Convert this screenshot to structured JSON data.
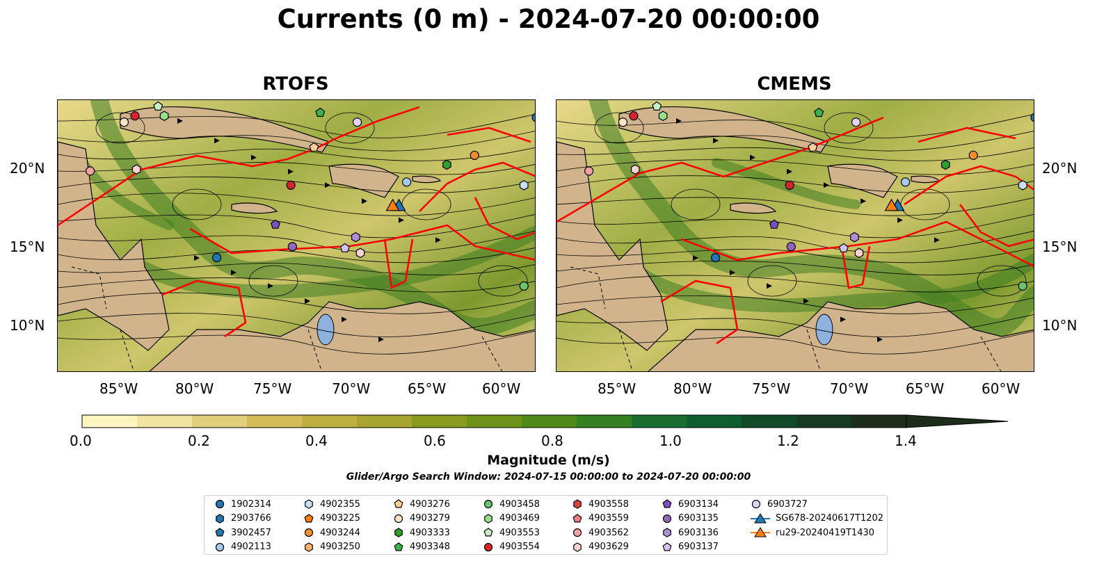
{
  "title": "Currents (0 m) - 2024-07-20 00:00:00",
  "panels": [
    {
      "title": "RTOFS"
    },
    {
      "title": "CMEMS"
    }
  ],
  "lon_ticks": [
    "85°W",
    "80°W",
    "75°W",
    "70°W",
    "65°W",
    "60°W"
  ],
  "lat_ticks": [
    "20°N",
    "15°N",
    "10°N"
  ],
  "colorbar": {
    "label": "Magnitude (m/s)",
    "range": [
      0.0,
      1.5
    ],
    "extend": "max",
    "tick_labels": [
      "0.0",
      "0.2",
      "0.4",
      "0.6",
      "0.8",
      "1.0",
      "1.2",
      "1.4"
    ],
    "colors": [
      "#fdf5c0",
      "#f1e4a0",
      "#e2cf7c",
      "#d2bd5a",
      "#bfae40",
      "#a8a530",
      "#8a9c20",
      "#6f9318",
      "#4f8a18",
      "#348023",
      "#1a6e30",
      "#0f5e30",
      "#104a28",
      "#173b22",
      "#1c2e1a"
    ]
  },
  "search_window": "Glider/Argo Search Window: 2024-07-15 00:00:00 to 2024-07-20 00:00:00",
  "legend": {
    "items": [
      {
        "label": "1902314",
        "marker": "circle",
        "color": "#1f77b4"
      },
      {
        "label": "2903766",
        "marker": "hexagon",
        "color": "#1f77b4"
      },
      {
        "label": "3902457",
        "marker": "pentagon",
        "color": "#1f77b4"
      },
      {
        "label": "4902113",
        "marker": "circle",
        "color": "#a6cbe9"
      },
      {
        "label": "4902355",
        "marker": "hexagon",
        "color": "#c6e2f7"
      },
      {
        "label": "4903225",
        "marker": "pentagon",
        "color": "#ff7f0e"
      },
      {
        "label": "4903244",
        "marker": "circle",
        "color": "#f28e2b"
      },
      {
        "label": "4903250",
        "marker": "hexagon",
        "color": "#ffb36b"
      },
      {
        "label": "4903276",
        "marker": "pentagon",
        "color": "#ffcf9a"
      },
      {
        "label": "4903279",
        "marker": "circle",
        "color": "#ffe4c8"
      },
      {
        "label": "4903333",
        "marker": "hexagon",
        "color": "#2ca02c"
      },
      {
        "label": "4903348",
        "marker": "pentagon",
        "color": "#3cb24a"
      },
      {
        "label": "4903458",
        "marker": "circle",
        "color": "#6cc36c"
      },
      {
        "label": "4903469",
        "marker": "hexagon",
        "color": "#98df8a"
      },
      {
        "label": "4903553",
        "marker": "pentagon",
        "color": "#c7f0c0"
      },
      {
        "label": "4903554",
        "marker": "circle",
        "color": "#d62728"
      },
      {
        "label": "4903558",
        "marker": "hexagon",
        "color": "#d9433f"
      },
      {
        "label": "4903559",
        "marker": "pentagon",
        "color": "#f08080"
      },
      {
        "label": "4903562",
        "marker": "circle",
        "color": "#f4a0a0"
      },
      {
        "label": "4903629",
        "marker": "hexagon",
        "color": "#fbd0d0"
      },
      {
        "label": "6903134",
        "marker": "pentagon",
        "color": "#7e4fbf"
      },
      {
        "label": "6903135",
        "marker": "circle",
        "color": "#9467bd"
      },
      {
        "label": "6903136",
        "marker": "hexagon",
        "color": "#b08fd6"
      },
      {
        "label": "6903137",
        "marker": "pentagon",
        "color": "#d6c2ef"
      },
      {
        "label": "6903727",
        "marker": "circle",
        "color": "#e3d4f7"
      },
      {
        "label": "SG678-20240617T1202",
        "marker": "triangle-line",
        "color": "#1f77b4"
      },
      {
        "label": "ru29-20240419T1430",
        "marker": "triangle-line",
        "color": "#ff7f0e"
      }
    ]
  },
  "markers": [
    {
      "id": "1902314",
      "lon": -78.7,
      "lat": 14.3
    },
    {
      "id": "4903279",
      "lon": -84.7,
      "lat": 22.9
    },
    {
      "id": "4903554",
      "lon": -84.0,
      "lat": 23.3
    },
    {
      "id": "4903553",
      "lon": -82.5,
      "lat": 23.9
    },
    {
      "id": "4903469",
      "lon": -82.1,
      "lat": 23.3
    },
    {
      "id": "4903348",
      "lon": -72.0,
      "lat": 23.5
    },
    {
      "id": "6903727",
      "lon": -69.6,
      "lat": 22.9
    },
    {
      "id": "1902314",
      "lon": -58.0,
      "lat": 23.2
    },
    {
      "id": "4903562",
      "lon": -86.9,
      "lat": 19.8
    },
    {
      "id": "4903629",
      "lon": -83.9,
      "lat": 19.9
    },
    {
      "id": "4903554",
      "lon": -73.9,
      "lat": 18.9
    },
    {
      "id": "4903276",
      "lon": -72.4,
      "lat": 21.3
    },
    {
      "id": "4903244",
      "lon": -62.0,
      "lat": 20.8
    },
    {
      "id": "4903333",
      "lon": -63.8,
      "lat": 20.2
    },
    {
      "id": "4902113",
      "lon": -66.4,
      "lat": 19.1
    },
    {
      "id": "4902355",
      "lon": -58.8,
      "lat": 18.9
    },
    {
      "id": "6903134",
      "lon": -74.9,
      "lat": 16.4
    },
    {
      "id": "6903135",
      "lon": -73.8,
      "lat": 15.0
    },
    {
      "id": "6903136",
      "lon": -69.7,
      "lat": 15.6
    },
    {
      "id": "6903137",
      "lon": -70.4,
      "lat": 14.9
    },
    {
      "id": "4903629",
      "lon": -69.4,
      "lat": 14.6
    },
    {
      "id": "4903458",
      "lon": -58.8,
      "lat": 12.5
    }
  ],
  "gliders": [
    {
      "id": "SG678-20240617T1202",
      "lon": -66.9,
      "lat": 17.6
    },
    {
      "id": "ru29-20240419T1430",
      "lon": -67.3,
      "lat": 17.6
    }
  ]
}
